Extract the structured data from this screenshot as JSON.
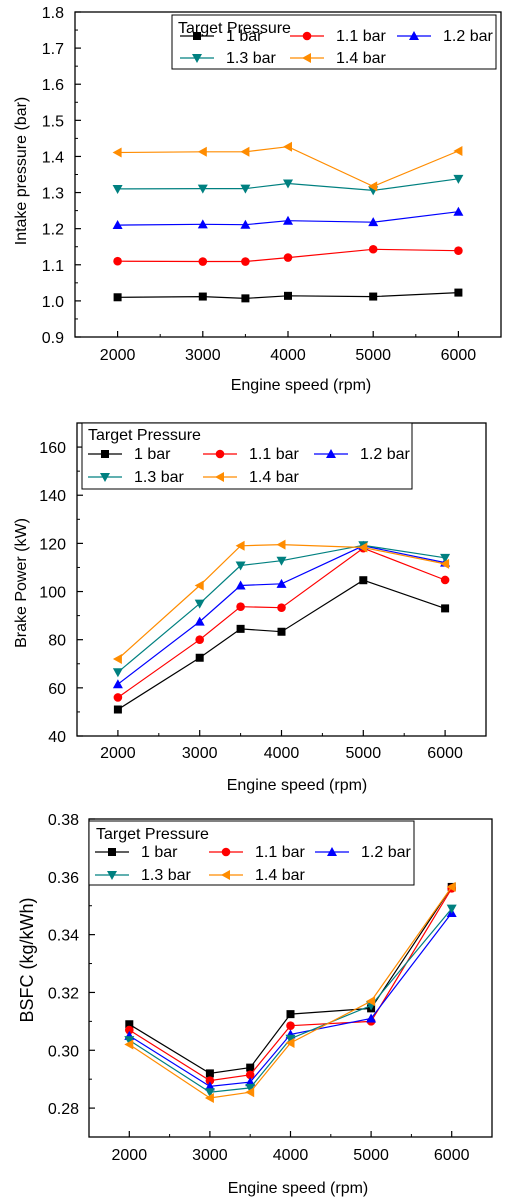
{
  "chart_data": [
    {
      "type": "line",
      "xlabel": "Engine speed (rpm)",
      "ylabel": "Intake pressure (bar)",
      "xlim": [
        1500,
        6500
      ],
      "ylim": [
        0.9,
        1.8
      ],
      "xticks": [
        2000,
        3000,
        4000,
        5000,
        6000
      ],
      "yticks": [
        0.9,
        1.0,
        1.1,
        1.2,
        1.3,
        1.4,
        1.5,
        1.6,
        1.7,
        1.8
      ],
      "ytick_decimals": 1,
      "legend_title": "Target Pressure",
      "legend_position": "top-right",
      "x": [
        2000,
        3000,
        3500,
        4000,
        5000,
        6000
      ],
      "series": [
        {
          "name": "1 bar",
          "color": "#000000",
          "marker": "square",
          "values": [
            1.01,
            1.012,
            1.007,
            1.014,
            1.012,
            1.023
          ]
        },
        {
          "name": "1.1 bar",
          "color": "#ff0000",
          "marker": "circle",
          "values": [
            1.11,
            1.109,
            1.109,
            1.12,
            1.143,
            1.139
          ]
        },
        {
          "name": "1.2 bar",
          "color": "#0000ff",
          "marker": "triangle-up",
          "values": [
            1.21,
            1.212,
            1.211,
            1.222,
            1.218,
            1.247
          ]
        },
        {
          "name": "1.3 bar",
          "color": "#008080",
          "marker": "triangle-down",
          "values": [
            1.31,
            1.311,
            1.311,
            1.325,
            1.306,
            1.338
          ]
        },
        {
          "name": "1.4 bar",
          "color": "#ff8c00",
          "marker": "triangle-left",
          "values": [
            1.411,
            1.413,
            1.413,
            1.427,
            1.317,
            1.415
          ]
        }
      ]
    },
    {
      "type": "line",
      "xlabel": "Engine speed (rpm)",
      "ylabel": "Brake Power (kW)",
      "xlim": [
        1500,
        6500
      ],
      "ylim": [
        40,
        170
      ],
      "xticks": [
        2000,
        3000,
        4000,
        5000,
        6000
      ],
      "yticks": [
        40,
        60,
        80,
        100,
        120,
        140,
        160
      ],
      "ytick_decimals": 0,
      "legend_title": "Target Pressure",
      "legend_position": "top-left",
      "x": [
        2000,
        3000,
        3500,
        4000,
        5000,
        6000
      ],
      "series": [
        {
          "name": "1 bar",
          "color": "#000000",
          "marker": "square",
          "values": [
            51,
            72.5,
            84.5,
            83.3,
            104.7,
            93
          ]
        },
        {
          "name": "1.1 bar",
          "color": "#ff0000",
          "marker": "circle",
          "values": [
            56,
            80,
            93.7,
            93.3,
            118,
            104.8
          ]
        },
        {
          "name": "1.2 bar",
          "color": "#0000ff",
          "marker": "triangle-up",
          "values": [
            61.5,
            87.5,
            102.5,
            103.2,
            119,
            112
          ]
        },
        {
          "name": "1.3 bar",
          "color": "#008080",
          "marker": "triangle-down",
          "values": [
            66.5,
            95,
            110.8,
            112.8,
            119.2,
            114
          ]
        },
        {
          "name": "1.4 bar",
          "color": "#ff8c00",
          "marker": "triangle-left",
          "values": [
            72,
            102.5,
            119,
            119.5,
            118.3,
            111.5
          ]
        }
      ]
    },
    {
      "type": "line",
      "xlabel": "Engine speed (rpm)",
      "ylabel": "BSFC (kg/kWh)",
      "xlim": [
        1500,
        6500
      ],
      "ylim": [
        0.27,
        0.38
      ],
      "xticks": [
        2000,
        3000,
        4000,
        5000,
        6000
      ],
      "yticks": [
        0.28,
        0.3,
        0.32,
        0.34,
        0.36,
        0.38
      ],
      "ytick_decimals": 2,
      "legend_title": "Target Pressure",
      "legend_position": "top-left",
      "x": [
        2000,
        3000,
        3500,
        4000,
        5000,
        6000
      ],
      "series": [
        {
          "name": "1 bar",
          "color": "#000000",
          "marker": "square",
          "values": [
            0.309,
            0.292,
            0.294,
            0.3125,
            0.3145,
            0.3565
          ]
        },
        {
          "name": "1.1 bar",
          "color": "#ff0000",
          "marker": "circle",
          "values": [
            0.307,
            0.2895,
            0.2915,
            0.3085,
            0.31,
            0.356
          ]
        },
        {
          "name": "1.2 bar",
          "color": "#0000ff",
          "marker": "triangle-up",
          "values": [
            0.305,
            0.2875,
            0.289,
            0.3055,
            0.311,
            0.3475
          ]
        },
        {
          "name": "1.3 bar",
          "color": "#008080",
          "marker": "triangle-down",
          "values": [
            0.3035,
            0.2855,
            0.287,
            0.304,
            0.3155,
            0.349
          ]
        },
        {
          "name": "1.4 bar",
          "color": "#ff8c00",
          "marker": "triangle-left",
          "values": [
            0.302,
            0.2835,
            0.2855,
            0.3025,
            0.317,
            0.3565
          ]
        }
      ]
    }
  ]
}
